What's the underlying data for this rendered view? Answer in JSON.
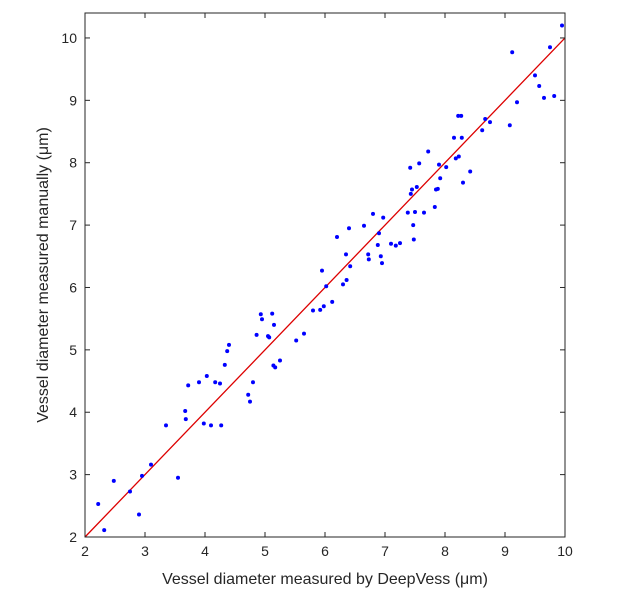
{
  "chart_data": {
    "type": "scatter",
    "title": "",
    "xlabel": "Vessel diameter measured by DeepVess (μm)",
    "ylabel": "Vessel diameter measured manually (μm)",
    "xlim": [
      2,
      10
    ],
    "ylim": [
      2,
      10.4
    ],
    "xticks": [
      2,
      3,
      4,
      5,
      6,
      7,
      8,
      9,
      10
    ],
    "yticks": [
      2,
      3,
      4,
      5,
      6,
      7,
      8,
      9,
      10
    ],
    "grid": false,
    "legend": "none",
    "colors": {
      "points": "#0000ff",
      "line": "#dd0000",
      "axes": "#262626"
    },
    "series": [
      {
        "name": "measurements",
        "points": [
          [
            2.22,
            2.53
          ],
          [
            2.32,
            2.11
          ],
          [
            2.48,
            2.9
          ],
          [
            2.75,
            2.73
          ],
          [
            2.9,
            2.36
          ],
          [
            2.95,
            2.98
          ],
          [
            3.1,
            3.16
          ],
          [
            3.35,
            3.79
          ],
          [
            3.55,
            2.95
          ],
          [
            3.67,
            4.02
          ],
          [
            3.68,
            3.89
          ],
          [
            3.72,
            4.43
          ],
          [
            3.9,
            4.48
          ],
          [
            3.98,
            3.82
          ],
          [
            4.03,
            4.58
          ],
          [
            4.1,
            3.79
          ],
          [
            4.17,
            4.48
          ],
          [
            4.25,
            4.46
          ],
          [
            4.27,
            3.79
          ],
          [
            4.33,
            4.76
          ],
          [
            4.37,
            4.98
          ],
          [
            4.4,
            5.08
          ],
          [
            4.72,
            4.28
          ],
          [
            4.75,
            4.17
          ],
          [
            4.8,
            4.48
          ],
          [
            4.86,
            5.24
          ],
          [
            4.93,
            5.57
          ],
          [
            4.95,
            5.49
          ],
          [
            5.05,
            5.22
          ],
          [
            5.07,
            5.2
          ],
          [
            5.12,
            5.58
          ],
          [
            5.14,
            4.75
          ],
          [
            5.15,
            5.4
          ],
          [
            5.17,
            4.72
          ],
          [
            5.25,
            4.83
          ],
          [
            5.52,
            5.15
          ],
          [
            5.65,
            5.26
          ],
          [
            5.8,
            5.63
          ],
          [
            5.92,
            5.64
          ],
          [
            5.95,
            6.27
          ],
          [
            5.98,
            5.7
          ],
          [
            6.02,
            6.02
          ],
          [
            6.12,
            5.77
          ],
          [
            6.2,
            6.81
          ],
          [
            6.3,
            6.05
          ],
          [
            6.35,
            6.53
          ],
          [
            6.36,
            6.12
          ],
          [
            6.4,
            6.95
          ],
          [
            6.42,
            6.34
          ],
          [
            6.65,
            6.99
          ],
          [
            6.72,
            6.53
          ],
          [
            6.73,
            6.45
          ],
          [
            6.8,
            7.18
          ],
          [
            6.88,
            6.68
          ],
          [
            6.9,
            6.87
          ],
          [
            6.93,
            6.5
          ],
          [
            6.95,
            6.39
          ],
          [
            6.97,
            7.12
          ],
          [
            7.1,
            6.7
          ],
          [
            7.18,
            6.67
          ],
          [
            7.25,
            6.71
          ],
          [
            7.38,
            7.2
          ],
          [
            7.42,
            7.92
          ],
          [
            7.43,
            7.5
          ],
          [
            7.45,
            7.57
          ],
          [
            7.47,
            7.0
          ],
          [
            7.48,
            6.77
          ],
          [
            7.5,
            7.21
          ],
          [
            7.53,
            7.61
          ],
          [
            7.57,
            7.99
          ],
          [
            7.65,
            7.2
          ],
          [
            7.72,
            8.18
          ],
          [
            7.83,
            7.29
          ],
          [
            7.85,
            7.57
          ],
          [
            7.88,
            7.58
          ],
          [
            7.9,
            7.97
          ],
          [
            7.92,
            7.75
          ],
          [
            8.02,
            7.93
          ],
          [
            8.15,
            8.4
          ],
          [
            8.18,
            8.07
          ],
          [
            8.22,
            8.75
          ],
          [
            8.23,
            8.1
          ],
          [
            8.27,
            8.75
          ],
          [
            8.28,
            8.4
          ],
          [
            8.3,
            7.68
          ],
          [
            8.42,
            7.86
          ],
          [
            8.62,
            8.52
          ],
          [
            8.67,
            8.7
          ],
          [
            8.75,
            8.65
          ],
          [
            9.08,
            8.6
          ],
          [
            9.12,
            9.77
          ],
          [
            9.2,
            8.97
          ],
          [
            9.5,
            9.4
          ],
          [
            9.57,
            9.23
          ],
          [
            9.65,
            9.04
          ],
          [
            9.75,
            9.85
          ],
          [
            9.82,
            9.07
          ],
          [
            9.95,
            10.2
          ]
        ]
      }
    ],
    "reference_line": {
      "name": "y = x",
      "from": [
        2,
        2
      ],
      "to": [
        10,
        10
      ]
    }
  }
}
